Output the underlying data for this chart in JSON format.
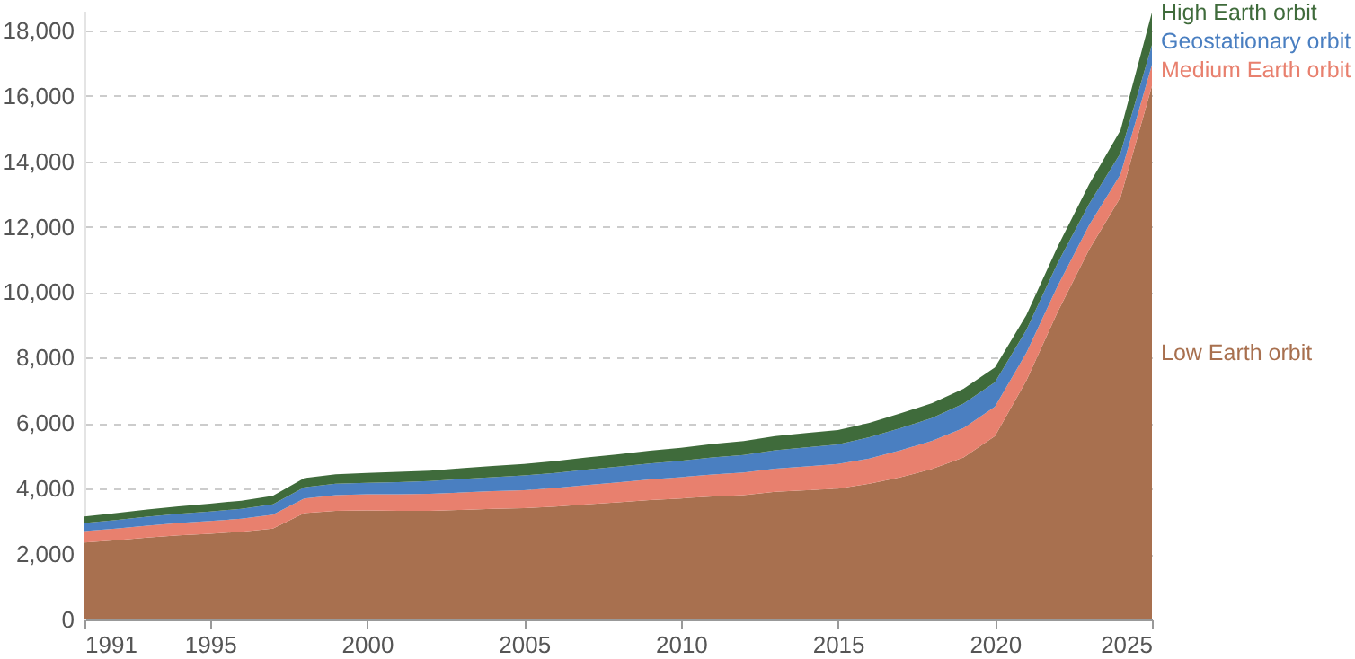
{
  "chart_data": {
    "type": "area",
    "stacked": true,
    "x": [
      1991,
      1992,
      1993,
      1994,
      1995,
      1996,
      1997,
      1998,
      1999,
      2000,
      2001,
      2002,
      2003,
      2004,
      2005,
      2006,
      2007,
      2008,
      2009,
      2010,
      2011,
      2012,
      2013,
      2014,
      2015,
      2016,
      2017,
      2018,
      2019,
      2020,
      2021,
      2022,
      2023,
      2024,
      2025
    ],
    "series": [
      {
        "name": "Low Earth orbit",
        "color": "#a8704f",
        "values": [
          2350,
          2420,
          2500,
          2570,
          2620,
          2680,
          2780,
          3250,
          3320,
          3330,
          3320,
          3320,
          3350,
          3380,
          3400,
          3450,
          3520,
          3580,
          3650,
          3700,
          3760,
          3800,
          3900,
          3950,
          4000,
          4150,
          4350,
          4600,
          4950,
          5600,
          7300,
          9400,
          11300,
          12900,
          16300
        ]
      },
      {
        "name": "Medium Earth orbit",
        "color": "#e8806e",
        "values": [
          350,
          360,
          370,
          380,
          390,
          400,
          420,
          450,
          480,
          500,
          510,
          520,
          530,
          540,
          550,
          570,
          590,
          610,
          630,
          650,
          670,
          690,
          710,
          730,
          750,
          770,
          820,
          860,
          900,
          900,
          850,
          800,
          750,
          700,
          650
        ]
      },
      {
        "name": "Geostationary orbit",
        "color": "#4a7fc1",
        "values": [
          250,
          260,
          270,
          280,
          290,
          300,
          320,
          340,
          350,
          350,
          370,
          390,
          410,
          430,
          450,
          460,
          470,
          480,
          490,
          500,
          520,
          540,
          560,
          580,
          600,
          650,
          680,
          700,
          750,
          750,
          700,
          700,
          650,
          650,
          600
        ]
      },
      {
        "name": "High Earth orbit",
        "color": "#3f6b3b",
        "values": [
          200,
          210,
          220,
          230,
          240,
          250,
          260,
          280,
          290,
          300,
          310,
          320,
          330,
          340,
          350,
          360,
          370,
          380,
          390,
          400,
          410,
          420,
          430,
          440,
          440,
          440,
          450,
          450,
          450,
          450,
          450,
          500,
          600,
          700,
          1000
        ]
      }
    ],
    "xlim": [
      1991,
      2025
    ],
    "xticks": [
      1991,
      1995,
      2000,
      2005,
      2010,
      2015,
      2020,
      2025
    ],
    "ylim": [
      0,
      18600
    ],
    "yticks": [
      0,
      {
        "value": 2000,
        "label": "2,000"
      },
      {
        "value": 4000,
        "label": "4,000"
      },
      {
        "value": 6000,
        "label": "6,000"
      },
      {
        "value": 8000,
        "label": "8,000"
      },
      {
        "value": 10000,
        "label": "10,000"
      },
      {
        "value": 12000,
        "label": "12,000"
      },
      {
        "value": 14000,
        "label": "14,000"
      },
      {
        "value": 16000,
        "label": "16,000"
      },
      {
        "value": 18000,
        "label": "18,000"
      }
    ],
    "grid": "y"
  }
}
